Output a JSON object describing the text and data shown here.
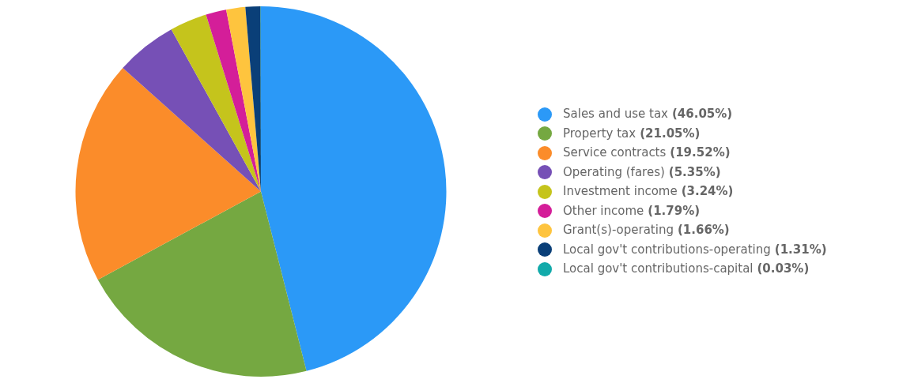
{
  "chart_data": {
    "type": "pie",
    "legend": "right",
    "categories": [
      "Sales and use tax",
      "Property tax",
      "Service contracts",
      "Operating (fares)",
      "Investment income",
      "Other income",
      "Grant(s)-operating",
      "Local gov't contributions-operating",
      "Local gov't contributions-capital"
    ],
    "values": [
      46.05,
      21.05,
      19.52,
      5.35,
      3.24,
      1.79,
      1.66,
      1.31,
      0.03
    ],
    "value_labels": [
      "(46.05%)",
      "(21.05%)",
      "(19.52%)",
      "(5.35%)",
      "(3.24%)",
      "(1.79%)",
      "(1.66%)",
      "(1.31%)",
      "(0.03%)"
    ],
    "colors": [
      "#2b99f7",
      "#75a841",
      "#fb8c2a",
      "#7650b6",
      "#c5c41c",
      "#d41e99",
      "#fec43e",
      "#0a3f78",
      "#12aaaa"
    ]
  }
}
